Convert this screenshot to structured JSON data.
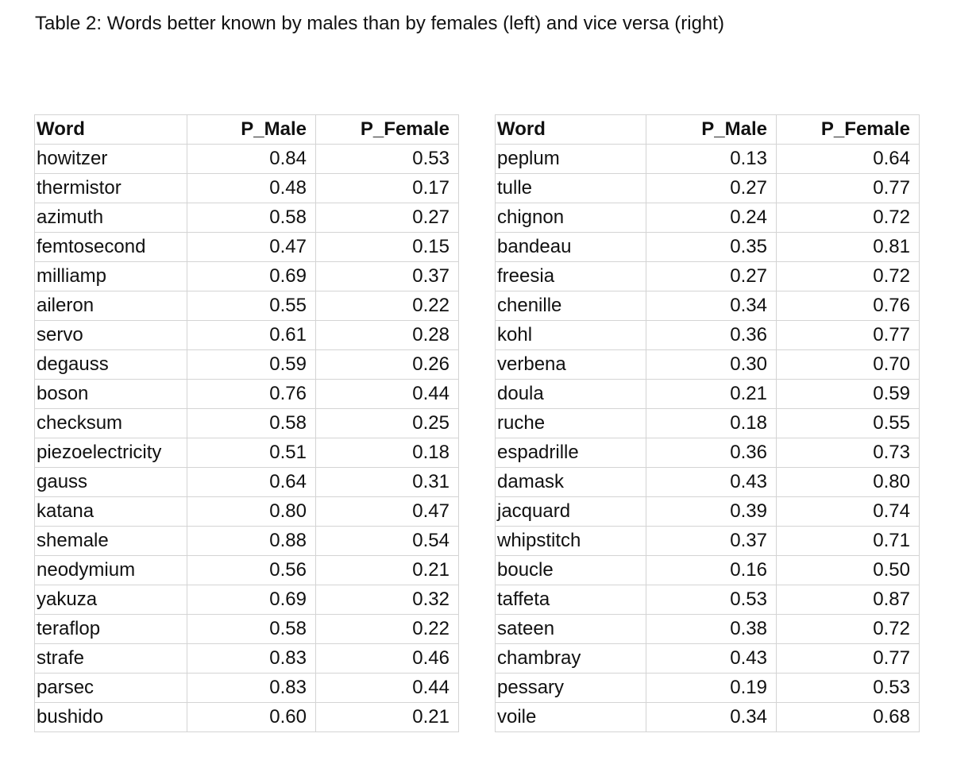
{
  "caption": "Table 2: Words better known by males than by females (left) and vice versa (right)",
  "left_table": {
    "headers": [
      "Word",
      "P_Male",
      "P_Female"
    ],
    "rows": [
      [
        "howitzer",
        "0.84",
        "0.53"
      ],
      [
        "thermistor",
        "0.48",
        "0.17"
      ],
      [
        "azimuth",
        "0.58",
        "0.27"
      ],
      [
        "femtosecond",
        "0.47",
        "0.15"
      ],
      [
        "milliamp",
        "0.69",
        "0.37"
      ],
      [
        "aileron",
        "0.55",
        "0.22"
      ],
      [
        "servo",
        "0.61",
        "0.28"
      ],
      [
        "degauss",
        "0.59",
        "0.26"
      ],
      [
        "boson",
        "0.76",
        "0.44"
      ],
      [
        "checksum",
        "0.58",
        "0.25"
      ],
      [
        "piezoelectricity",
        "0.51",
        "0.18"
      ],
      [
        "gauss",
        "0.64",
        "0.31"
      ],
      [
        "katana",
        "0.80",
        "0.47"
      ],
      [
        "shemale",
        "0.88",
        "0.54"
      ],
      [
        "neodymium",
        "0.56",
        "0.21"
      ],
      [
        "yakuza",
        "0.69",
        "0.32"
      ],
      [
        "teraflop",
        "0.58",
        "0.22"
      ],
      [
        "strafe",
        "0.83",
        "0.46"
      ],
      [
        "parsec",
        "0.83",
        "0.44"
      ],
      [
        "bushido",
        "0.60",
        "0.21"
      ]
    ]
  },
  "right_table": {
    "headers": [
      "Word",
      "P_Male",
      "P_Female"
    ],
    "rows": [
      [
        "peplum",
        "0.13",
        "0.64"
      ],
      [
        "tulle",
        "0.27",
        "0.77"
      ],
      [
        "chignon",
        "0.24",
        "0.72"
      ],
      [
        "bandeau",
        "0.35",
        "0.81"
      ],
      [
        "freesia",
        "0.27",
        "0.72"
      ],
      [
        "chenille",
        "0.34",
        "0.76"
      ],
      [
        "kohl",
        "0.36",
        "0.77"
      ],
      [
        "verbena",
        "0.30",
        "0.70"
      ],
      [
        "doula",
        "0.21",
        "0.59"
      ],
      [
        "ruche",
        "0.18",
        "0.55"
      ],
      [
        "espadrille",
        "0.36",
        "0.73"
      ],
      [
        "damask",
        "0.43",
        "0.80"
      ],
      [
        "jacquard",
        "0.39",
        "0.74"
      ],
      [
        "whipstitch",
        "0.37",
        "0.71"
      ],
      [
        "boucle",
        "0.16",
        "0.50"
      ],
      [
        "taffeta",
        "0.53",
        "0.87"
      ],
      [
        "sateen",
        "0.38",
        "0.72"
      ],
      [
        "chambray",
        "0.43",
        "0.77"
      ],
      [
        "pessary",
        "0.19",
        "0.53"
      ],
      [
        "voile",
        "0.34",
        "0.68"
      ]
    ]
  }
}
